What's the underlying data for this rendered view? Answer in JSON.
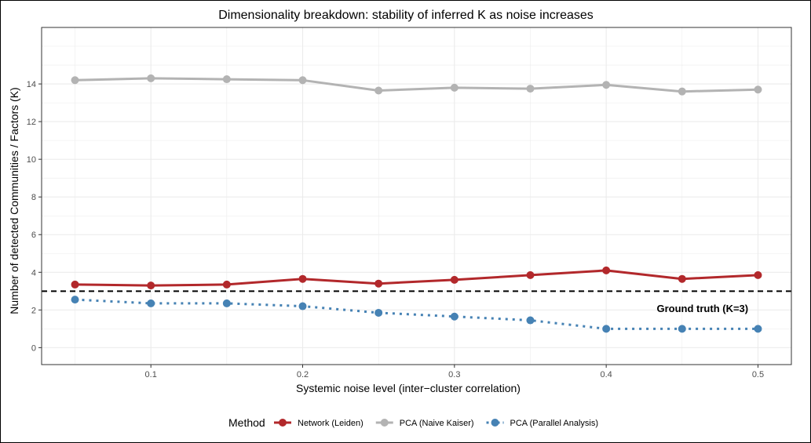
{
  "chart_data": {
    "type": "line",
    "title": "Dimensionality breakdown: stability of inferred K as noise increases",
    "xlabel": "Systemic noise level (inter−cluster correlation)",
    "ylabel": "Number of detected Communities / Factors (K)",
    "x": [
      0.05,
      0.1,
      0.15,
      0.2,
      0.25,
      0.3,
      0.35,
      0.4,
      0.45,
      0.5
    ],
    "xlim": [
      0.028,
      0.522
    ],
    "ylim": [
      -0.9,
      17.0
    ],
    "xticks": [
      0.1,
      0.2,
      0.3,
      0.4,
      0.5
    ],
    "xtick_labels": [
      "0.1",
      "0.2",
      "0.3",
      "0.4",
      "0.5"
    ],
    "yticks": [
      0,
      2,
      4,
      6,
      8,
      10,
      12,
      14
    ],
    "ytick_labels": [
      "0",
      "2",
      "4",
      "6",
      "8",
      "10",
      "12",
      "14"
    ],
    "grid": true,
    "legend_title": "Method",
    "legend_position": "bottom",
    "series": [
      {
        "name": "Network (Leiden)",
        "color": "#B2282B",
        "linestyle": "solid",
        "values": [
          3.35,
          3.3,
          3.35,
          3.65,
          3.4,
          3.6,
          3.85,
          4.1,
          3.65,
          3.85
        ]
      },
      {
        "name": "PCA (Naive Kaiser)",
        "color": "#B3B3B3",
        "linestyle": "solid",
        "values": [
          14.2,
          14.3,
          14.25,
          14.2,
          13.65,
          13.8,
          13.75,
          13.95,
          13.6,
          13.7
        ]
      },
      {
        "name": "PCA (Parallel Analysis)",
        "color": "#4682B4",
        "linestyle": "dotted",
        "values": [
          2.55,
          2.35,
          2.35,
          2.2,
          1.85,
          1.65,
          1.45,
          1.0,
          1.0,
          1.0
        ]
      }
    ],
    "reference_line": {
      "y": 3,
      "color": "#000000",
      "linestyle": "dashed"
    },
    "annotation": {
      "text": "Ground truth (K=3)",
      "x": 0.435,
      "y": 2.1
    }
  }
}
